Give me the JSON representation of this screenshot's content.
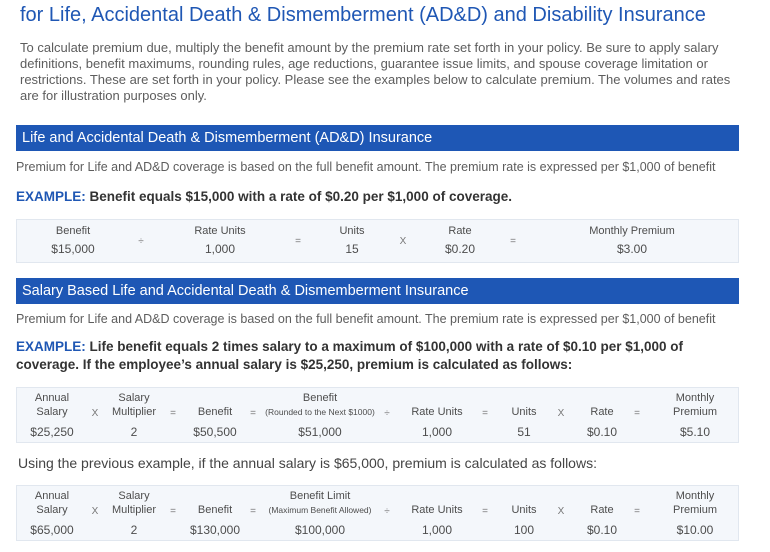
{
  "header": {
    "title": "for Life, Accidental Death & Dismemberment (AD&D) and Disability Insurance",
    "intro": "To calculate premium due, multiply the benefit amount by the premium rate set forth in your policy. Be sure to apply salary definitions, benefit maximums, rounding rules, age reductions, guarantee issue limits, and spouse coverage limitation or restrictions. These are set forth in your policy. Please see the examples below to calculate premium. The volumes and rates are for illustration purposes only."
  },
  "section1": {
    "heading": "Life and Accidental Death & Dismemberment (AD&D) Insurance",
    "desc": "Premium for Life and AD&D coverage is based on the full benefit amount. The premium rate is expressed per $1,000 of benefit",
    "example_label": "EXAMPLE:",
    "example_text": "Benefit equals $15,000 with a rate of $0.20 per $1,000 of coverage.",
    "table": {
      "benefit_label": "Benefit",
      "benefit_value": "$15,000",
      "op1": "÷",
      "rate_units_label": "Rate Units",
      "rate_units_value": "1,000",
      "op2": "=",
      "units_label": "Units",
      "units_value": "15",
      "op3": "X",
      "rate_label": "Rate",
      "rate_value": "$0.20",
      "op4": "=",
      "premium_label": "Monthly Premium",
      "premium_value": "$3.00"
    }
  },
  "section2": {
    "heading": "Salary Based Life and Accidental Death & Dismemberment Insurance",
    "desc": "Premium for Life and AD&D coverage is based on the full benefit amount. The premium rate is expressed per $1,000 of benefit",
    "example_label": "EXAMPLE:",
    "example_text": "Life benefit equals 2 times salary to a maximum of $100,000 with a rate of $0.10 per $1,000 of coverage. If the employee’s annual salary is $25,250, premium is calculated as follows:",
    "table1": {
      "annual_label_1": "Annual",
      "annual_label_2": "Salary",
      "annual_value": "$25,250",
      "op_x1": "X",
      "mult_label_1": "Salary",
      "mult_label_2": "Multiplier",
      "mult_value": "2",
      "op_eq1": "=",
      "benefit_label": "Benefit",
      "benefit_value": "$50,500",
      "op_eq2": "=",
      "limit_label_1": "Benefit",
      "limit_label_2": "(Rounded to the Next $1000)",
      "limit_value": "$51,000",
      "op_div": "÷",
      "rate_units_label": "Rate Units",
      "rate_units_value": "1,000",
      "op_eq3": "=",
      "units_label": "Units",
      "units_value": "51",
      "op_x2": "X",
      "rate_label": "Rate",
      "rate_value": "$0.10",
      "op_eq4": "=",
      "premium_label_1": "Monthly",
      "premium_label_2": "Premium",
      "premium_value": "$5.10"
    },
    "using_text": "Using the previous example, if the annual salary is $65,000, premium is calculated as follows:",
    "table2": {
      "annual_label_1": "Annual",
      "annual_label_2": "Salary",
      "annual_value": "$65,000",
      "op_x1": "X",
      "mult_label_1": "Salary",
      "mult_label_2": "Multiplier",
      "mult_value": "2",
      "op_eq1": "=",
      "benefit_label": "Benefit",
      "benefit_value": "$130,000",
      "op_eq2": "=",
      "limit_label_1": "Benefit Limit",
      "limit_label_2": "(Maximum Benefit Allowed)",
      "limit_value": "$100,000",
      "op_div": "÷",
      "rate_units_label": "Rate Units",
      "rate_units_value": "1,000",
      "op_eq3": "=",
      "units_label": "Units",
      "units_value": "100",
      "op_x2": "X",
      "rate_label": "Rate",
      "rate_value": "$0.10",
      "op_eq4": "=",
      "premium_label_1": "Monthly",
      "premium_label_2": "Premium",
      "premium_value": "$10.00"
    }
  }
}
